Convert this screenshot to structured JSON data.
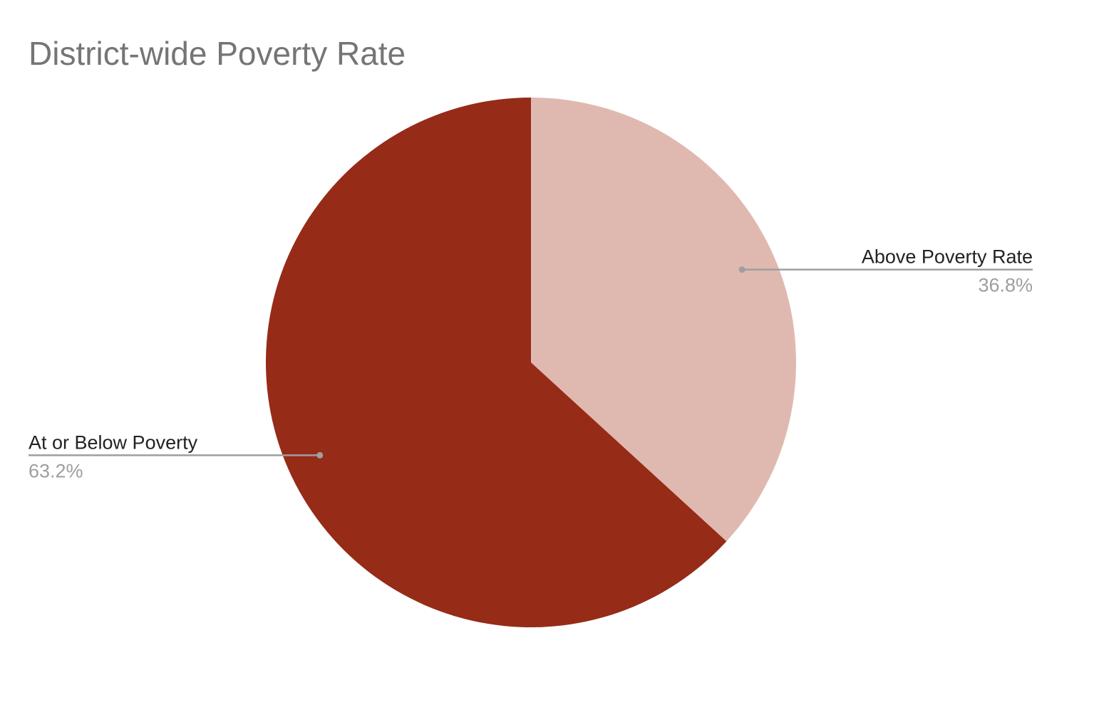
{
  "chart_data": {
    "type": "pie",
    "title": "District-wide Poverty Rate",
    "slices": [
      {
        "name": "Above Poverty Rate",
        "value": 36.8,
        "label": "36.8%",
        "color": "#dfb9b0"
      },
      {
        "name": "At or Below Poverty",
        "value": 63.2,
        "label": "63.2%",
        "color": "#962b18"
      }
    ],
    "start_angle_deg": 0,
    "direction": "clockwise",
    "legend": "labeled slices (callout lines)"
  },
  "colors": {
    "title": "#757575",
    "leader_line": "#9e9e9e",
    "value_text": "#9e9e9e",
    "name_text": "#222222"
  }
}
